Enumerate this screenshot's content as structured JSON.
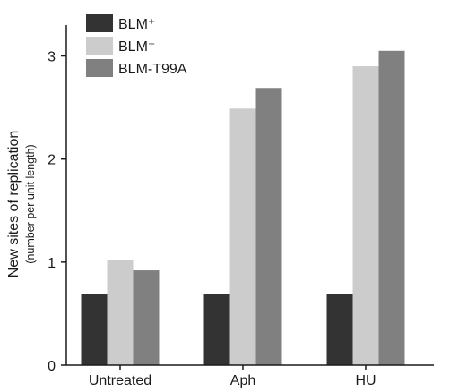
{
  "chart_data": {
    "type": "bar",
    "categories": [
      "Untreated",
      "Aph",
      "HU"
    ],
    "series": [
      {
        "name": "BLM⁺",
        "color": "#333333",
        "values": [
          0.69,
          0.69,
          0.69
        ]
      },
      {
        "name": "BLM⁻",
        "color": "#cccccc",
        "values": [
          1.02,
          2.49,
          2.9
        ]
      },
      {
        "name": "BLM-T99A",
        "color": "#808080",
        "values": [
          0.92,
          2.69,
          3.05
        ]
      }
    ],
    "ylabel": "New sites of replication",
    "ylabel_sub": "(number per unit length)",
    "ylim": [
      0,
      3.3
    ],
    "yticks": [
      0,
      1,
      2,
      3
    ],
    "legend_position": "top-left",
    "grid": false
  }
}
